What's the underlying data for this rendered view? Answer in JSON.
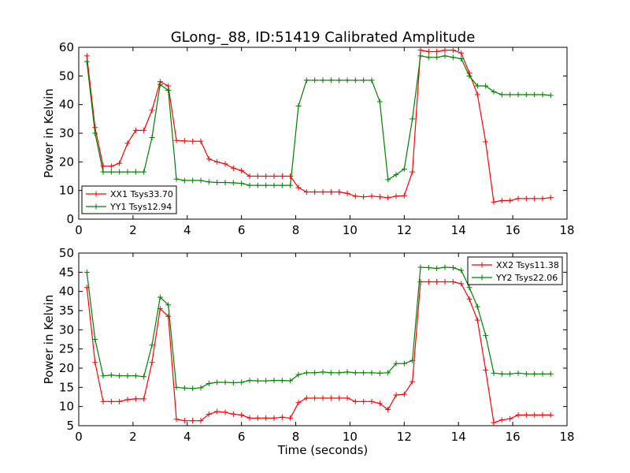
{
  "figure": {
    "title": "GLong-_88, ID:51419 Calibrated Amplitude",
    "xlabel": "Time (seconds)"
  },
  "colors": {
    "xx": "#ff0000",
    "yy": "#008000"
  },
  "chart_data": [
    {
      "type": "line",
      "title": "GLong-_88, ID:51419 Calibrated Amplitude",
      "xlabel": "",
      "ylabel": "Power in Kelvin",
      "xlim": [
        0,
        18
      ],
      "ylim": [
        0,
        60
      ],
      "xticks": [
        "0",
        "2",
        "4",
        "6",
        "8",
        "10",
        "12",
        "14",
        "16",
        "18"
      ],
      "yticks": [
        "0",
        "10",
        "20",
        "30",
        "40",
        "50",
        "60"
      ],
      "grid": false,
      "legend": "lower-left",
      "x": [
        0.3,
        0.6,
        0.9,
        1.2,
        1.5,
        1.8,
        2.1,
        2.4,
        2.7,
        3.0,
        3.3,
        3.6,
        3.9,
        4.2,
        4.5,
        4.8,
        5.1,
        5.4,
        5.7,
        6.0,
        6.3,
        6.6,
        6.9,
        7.2,
        7.5,
        7.8,
        8.1,
        8.4,
        8.7,
        9.0,
        9.3,
        9.6,
        9.9,
        10.2,
        10.5,
        10.8,
        11.1,
        11.4,
        11.7,
        12.0,
        12.3,
        12.6,
        12.9,
        13.2,
        13.5,
        13.8,
        14.1,
        14.4,
        14.7,
        15.0,
        15.3,
        15.6,
        15.9,
        16.2,
        16.5,
        16.8,
        17.1,
        17.4
      ],
      "series": [
        {
          "name": "XX1 Tsys33.70",
          "color": "#ff0000",
          "values": [
            57,
            32,
            18.5,
            18.5,
            19.5,
            26.5,
            31,
            31,
            38,
            48,
            46.5,
            27.5,
            27.3,
            27.2,
            27.2,
            21,
            20,
            19.3,
            17.8,
            17,
            15,
            15,
            15,
            15,
            15,
            15,
            11,
            9.5,
            9.5,
            9.5,
            9.5,
            9.5,
            9,
            8,
            7.8,
            8,
            7.8,
            7.5,
            8,
            8.2,
            16.5,
            59,
            58.5,
            58.5,
            59,
            59,
            58,
            51,
            43.5,
            27,
            6,
            6.5,
            6.5,
            7.2,
            7.2,
            7.2,
            7.2,
            7.5
          ]
        },
        {
          "name": "YY1 Tsys12.94",
          "color": "#008000",
          "values": [
            55,
            30,
            16.5,
            16.5,
            16.5,
            16.5,
            16.5,
            16.5,
            28.5,
            47,
            45,
            14,
            13.5,
            13.5,
            13.5,
            13,
            12.8,
            12.8,
            12.7,
            12.5,
            11.8,
            11.8,
            11.8,
            11.8,
            11.8,
            11.8,
            39.5,
            48.5,
            48.5,
            48.5,
            48.5,
            48.5,
            48.5,
            48.5,
            48.5,
            48.5,
            41,
            13.8,
            15.5,
            17.5,
            35,
            57,
            56.5,
            56.5,
            57,
            56.5,
            56,
            50,
            46.5,
            46.5,
            44.5,
            43.5,
            43.5,
            43.5,
            43.5,
            43.5,
            43.5,
            43.2
          ]
        }
      ]
    },
    {
      "type": "line",
      "title": "",
      "xlabel": "Time (seconds)",
      "ylabel": "Power in Kelvin",
      "xlim": [
        0,
        18
      ],
      "ylim": [
        5,
        50
      ],
      "xticks": [
        "0",
        "2",
        "4",
        "6",
        "8",
        "10",
        "12",
        "14",
        "16",
        "18"
      ],
      "yticks": [
        "5",
        "10",
        "15",
        "20",
        "25",
        "30",
        "35",
        "40",
        "45",
        "50"
      ],
      "grid": false,
      "legend": "top-right",
      "x": [
        0.3,
        0.6,
        0.9,
        1.2,
        1.5,
        1.8,
        2.1,
        2.4,
        2.7,
        3.0,
        3.3,
        3.6,
        3.9,
        4.2,
        4.5,
        4.8,
        5.1,
        5.4,
        5.7,
        6.0,
        6.3,
        6.6,
        6.9,
        7.2,
        7.5,
        7.8,
        8.1,
        8.4,
        8.7,
        9.0,
        9.3,
        9.6,
        9.9,
        10.2,
        10.5,
        10.8,
        11.1,
        11.4,
        11.7,
        12.0,
        12.3,
        12.6,
        12.9,
        13.2,
        13.5,
        13.8,
        14.1,
        14.4,
        14.7,
        15.0,
        15.3,
        15.6,
        15.9,
        16.2,
        16.5,
        16.8,
        17.1,
        17.4
      ],
      "series": [
        {
          "name": "XX2 Tsys11.38",
          "color": "#ff0000",
          "values": [
            41,
            21.5,
            11.3,
            11.3,
            11.3,
            11.8,
            12,
            12,
            21.5,
            35.5,
            33.5,
            6.7,
            6.3,
            6.3,
            6.3,
            8,
            8.7,
            8.5,
            8,
            7.8,
            7,
            7,
            7,
            7,
            7.2,
            7,
            11,
            12.2,
            12.2,
            12.2,
            12.2,
            12.2,
            12.2,
            11.3,
            11.3,
            11.3,
            10.8,
            9.2,
            13,
            13.2,
            16.5,
            42.5,
            42.5,
            42.5,
            42.5,
            42.5,
            42,
            38,
            32.5,
            19.5,
            5.8,
            6.5,
            6.8,
            7.8,
            7.8,
            7.8,
            7.8,
            7.8
          ]
        },
        {
          "name": "YY2 Tsys22.06",
          "color": "#008000",
          "values": [
            45,
            27.5,
            18,
            18.2,
            18,
            18,
            18,
            17.8,
            26,
            38.5,
            36.5,
            15,
            14.8,
            14.7,
            14.9,
            16,
            16.3,
            16.3,
            16.2,
            16.3,
            16.8,
            16.7,
            16.7,
            16.8,
            16.8,
            16.7,
            18.3,
            18.8,
            18.8,
            19,
            18.8,
            18.8,
            19,
            18.8,
            18.8,
            18.8,
            18.7,
            18.8,
            21.2,
            21.2,
            22,
            46.3,
            46.2,
            46,
            46.3,
            46.2,
            45.5,
            41,
            36,
            28.5,
            18.7,
            18.5,
            18.5,
            18.7,
            18.5,
            18.5,
            18.5,
            18.5
          ]
        }
      ]
    }
  ]
}
